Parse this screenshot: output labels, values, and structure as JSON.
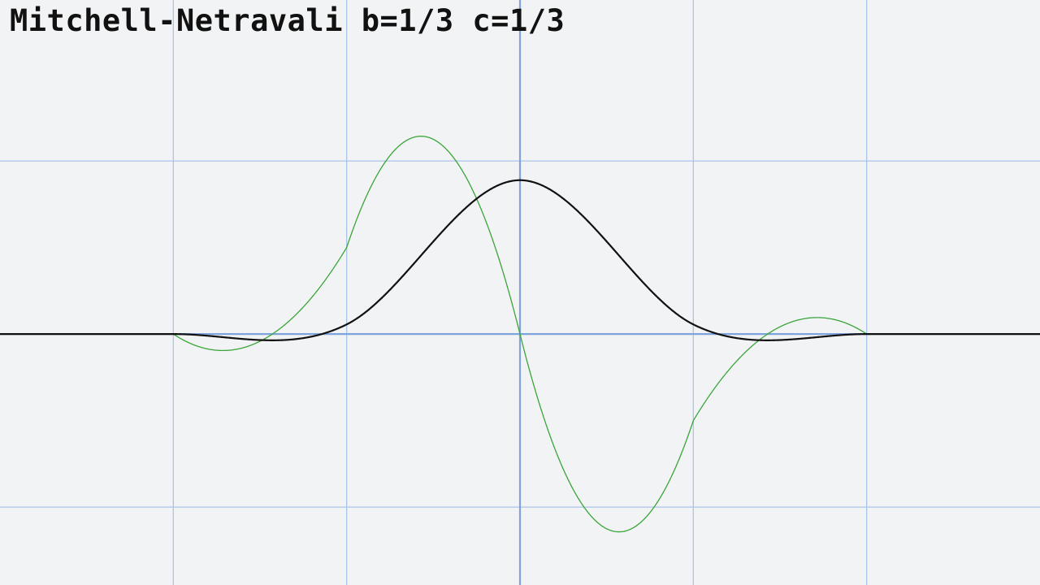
{
  "chart_data": {
    "type": "line",
    "title": "Mitchell-Netravali b=1/3 c=1/3",
    "xlabel": "",
    "ylabel": "",
    "xlim": [
      -3,
      3
    ],
    "ylim": [
      -1.45,
      1.93
    ],
    "grid": true,
    "legend": "none",
    "colors": {
      "background": "#f2f3f4",
      "grid": "#a9c4ea",
      "axis": "#7fa3dd",
      "kernel": "#111111",
      "derivative": "#3aa53a"
    },
    "grid_x": [
      -2,
      -1,
      0,
      1,
      2
    ],
    "grid_y": [
      -1,
      0,
      1
    ],
    "series": [
      {
        "id": "kernel",
        "formula": "mitchell-netravali-kernel",
        "b": 0.3333,
        "c": 0.3333,
        "x": [
          -3,
          -2,
          -1.5,
          -1.25,
          -1,
          -0.5,
          0,
          0.5,
          1,
          1.25,
          1.5,
          2,
          3
        ],
        "values": [
          0,
          0,
          -0.0365,
          -0.0254,
          0.0556,
          0.5365,
          0.8889,
          0.5365,
          0.0556,
          -0.0254,
          -0.0365,
          0,
          0
        ]
      },
      {
        "id": "derivative",
        "formula": "mitchell-netravali-derivative",
        "b": 0.3333,
        "c": 0.3333,
        "x": [
          -2,
          -1.72,
          -1.5,
          -1,
          -0.58,
          0,
          0.58,
          1,
          1.5,
          1.72,
          2
        ],
        "values": [
          0,
          -0.0988,
          -0.0833,
          0.5,
          1.1481,
          0,
          -1.1481,
          -0.5,
          0.0833,
          0.0988,
          0
        ]
      }
    ]
  }
}
